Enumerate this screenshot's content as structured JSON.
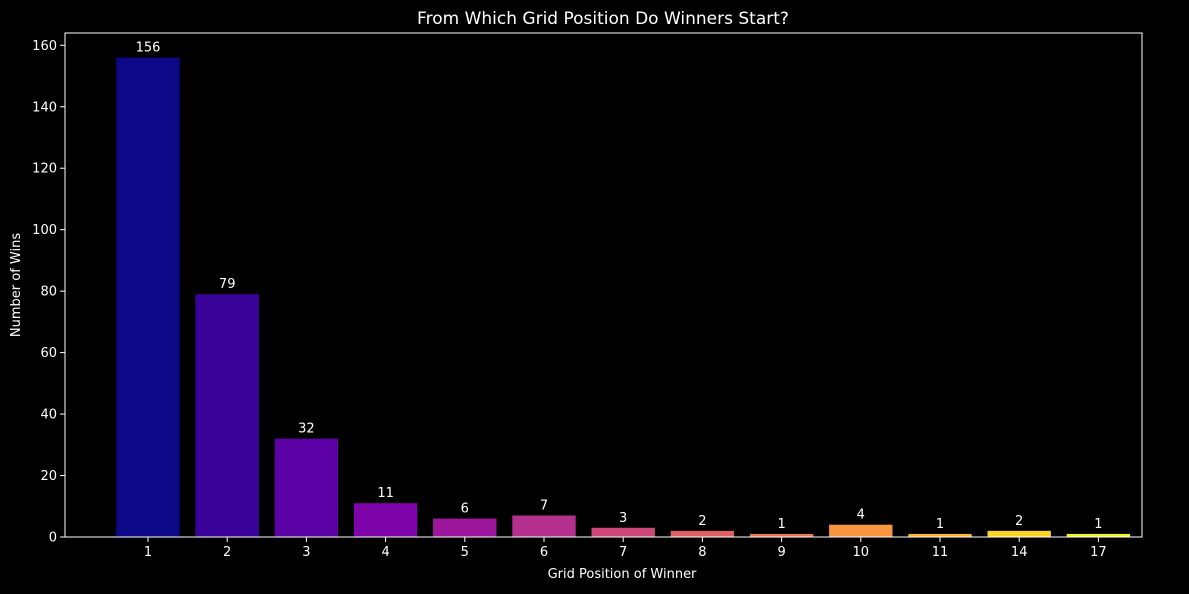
{
  "chart_data": {
    "type": "bar",
    "title": "From Which Grid Position Do Winners Start?",
    "xlabel": "Grid Position of Winner",
    "ylabel": "Number of Wins",
    "categories": [
      "1",
      "2",
      "3",
      "4",
      "5",
      "6",
      "7",
      "8",
      "9",
      "10",
      "11",
      "14",
      "17"
    ],
    "values": [
      156,
      79,
      32,
      11,
      6,
      7,
      3,
      2,
      1,
      4,
      1,
      2,
      1
    ],
    "colors": [
      "#0d0887",
      "#3a049a",
      "#5c01a6",
      "#7e03a8",
      "#9c179e",
      "#b52f8c",
      "#cc4778",
      "#de5f65",
      "#ed7953",
      "#f89540",
      "#fdb42f",
      "#fbd524",
      "#f0f921"
    ],
    "ylim": [
      0,
      164
    ],
    "yticks": [
      0,
      20,
      40,
      60,
      80,
      100,
      120,
      140,
      160
    ],
    "grid": false,
    "background": "#000000",
    "foreground": "#ffffff"
  }
}
